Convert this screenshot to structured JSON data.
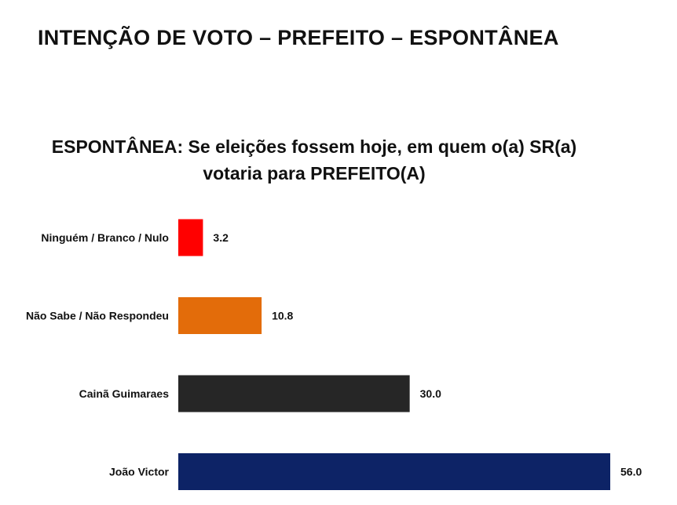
{
  "page_title": "INTENÇÃO DE VOTO – PREFEITO – ESPONTÂNEA",
  "chart_data": {
    "type": "bar",
    "orientation": "horizontal",
    "title_lines": [
      "ESPONTÂNEA: Se eleições fossem hoje, em quem o(a) SR(a)",
      "votaria para PREFEITO(A)"
    ],
    "categories": [
      "Ninguém / Branco / Nulo",
      "Não Sabe / Não Respondeu",
      "Cainã Guimaraes",
      "João Victor"
    ],
    "values": [
      3.2,
      10.8,
      30.0,
      56.0
    ],
    "value_labels": [
      "3.2",
      "10.8",
      "30.0",
      "56.0"
    ],
    "colors": [
      "#ff0000",
      "#e36c0a",
      "#262626",
      "#0d2366"
    ],
    "xlim": [
      0,
      56.0
    ],
    "grid": false,
    "legend": "none",
    "axis_lines": false
  }
}
